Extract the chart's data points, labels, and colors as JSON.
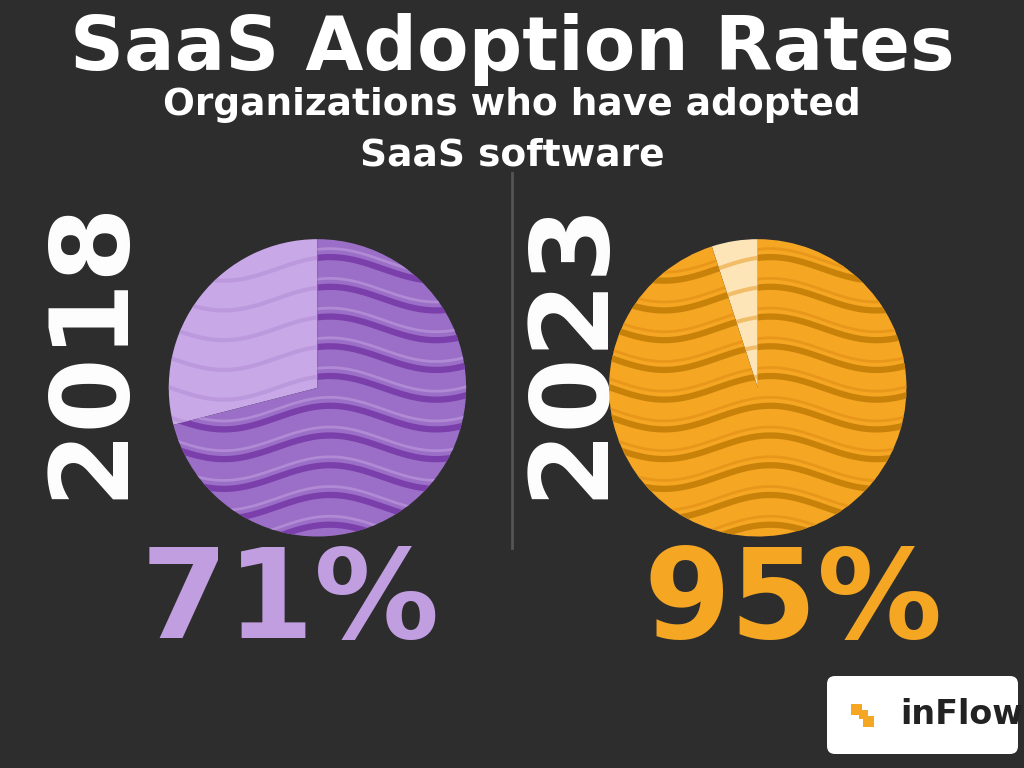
{
  "title": "SaaS Adoption Rates",
  "subtitle": "Organizations who have adopted\nSaaS software",
  "background_color": "#2d2d2d",
  "title_color": "#ffffff",
  "subtitle_color": "#ffffff",
  "chart1": {
    "year": "2018",
    "pct": 71,
    "pct_label": "71%",
    "color_main": "#9b6fc7",
    "color_light": "#c9a8e8",
    "color_stripe": "#7a3faa",
    "color_stripe_light": "#b08ad4",
    "year_color": "#ffffff",
    "pct_color": "#c09ee0"
  },
  "chart2": {
    "year": "2023",
    "pct": 95,
    "pct_label": "95%",
    "color_main": "#f5a623",
    "color_light": "#fde5b8",
    "color_stripe": "#c8820a",
    "color_stripe_light": "#e8971a",
    "year_color": "#ffffff",
    "pct_color": "#f5a623"
  },
  "divider_color": "#555555",
  "inflow_bg": "#ffffff",
  "inflow_text": "#222222",
  "inflow_icon_color": "#f5a623"
}
